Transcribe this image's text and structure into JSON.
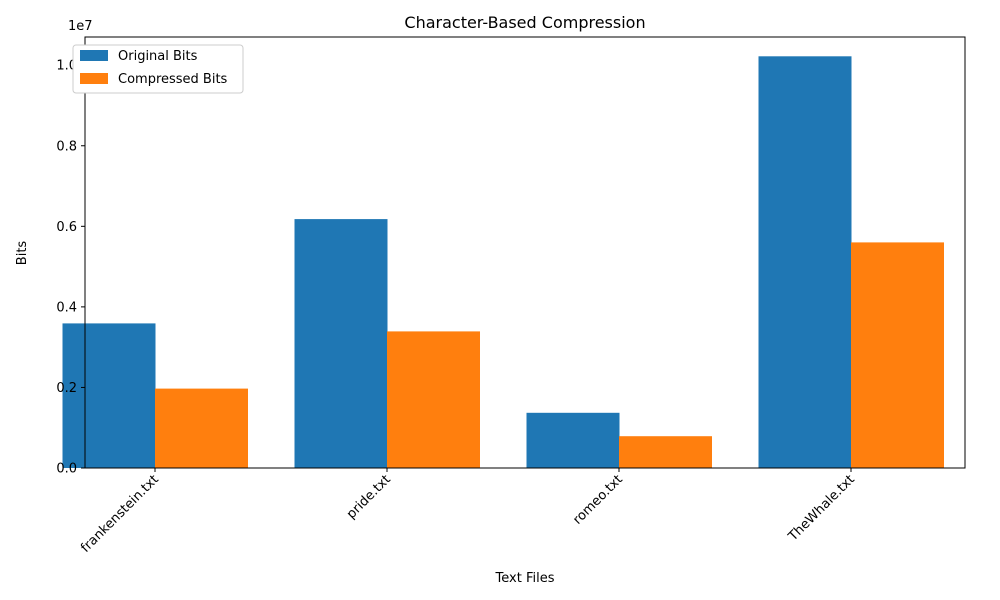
{
  "chart_data": {
    "type": "bar",
    "title": "Character-Based Compression",
    "xlabel": "Text Files",
    "ylabel": "Bits",
    "y_multiplier": "1e7",
    "categories": [
      "frankenstein.txt",
      "pride.txt",
      "romeo.txt",
      "TheWhale.txt"
    ],
    "series": [
      {
        "name": "Original Bits",
        "color": "#1f77b4",
        "values": [
          3590000,
          6180000,
          1370000,
          10220000
        ]
      },
      {
        "name": "Compressed Bits",
        "color": "#ff7f0e",
        "values": [
          1970000,
          3390000,
          790000,
          5600000
        ]
      }
    ],
    "ylim": [
      0,
      10.7
    ],
    "y_ticks": [
      "0.0",
      "0.2",
      "0.4",
      "0.6",
      "0.8",
      "1.0"
    ],
    "y_tick_values": [
      0,
      2000000,
      4000000,
      6000000,
      8000000,
      10000000
    ],
    "legend_position": "upper-left",
    "grid": false
  }
}
